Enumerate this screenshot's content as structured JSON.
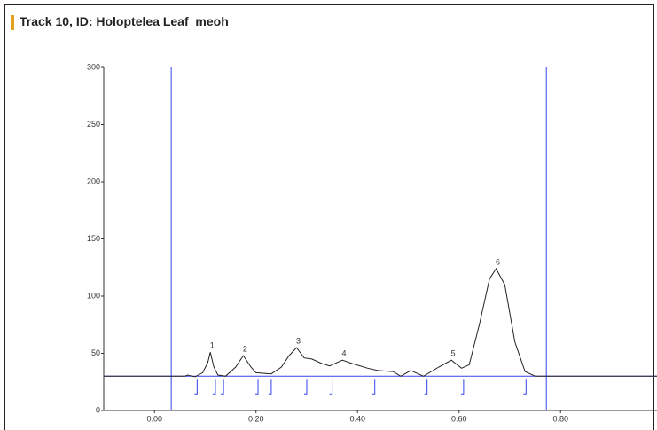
{
  "chart_data": {
    "type": "line",
    "title": "Track 10, ID: Holoptelea Leaf_meoh",
    "xlim": [
      -0.1,
      0.99
    ],
    "ylim": [
      0,
      300
    ],
    "yticks": [
      0,
      50,
      100,
      150,
      200,
      250,
      300
    ],
    "xticks": [
      {
        "value": 0,
        "label": "0.00"
      },
      {
        "value": 0.2,
        "label": "0.20"
      },
      {
        "value": 0.4,
        "label": "0.40"
      },
      {
        "value": 0.6,
        "label": "0.60"
      },
      {
        "value": 0.8,
        "label": "0.80"
      }
    ],
    "grid": false,
    "color": "#222222",
    "marker_color": "#3344ee",
    "start_line": 0.033,
    "front_line": 0.772,
    "baseline": 30,
    "peak_boundaries": [
      0.084,
      0.12,
      0.136,
      0.204,
      0.23,
      0.3,
      0.35,
      0.434,
      0.537,
      0.609,
      0.732
    ],
    "x": [
      -0.1,
      0.06,
      0.065,
      0.07,
      0.08,
      0.095,
      0.105,
      0.11,
      0.117,
      0.125,
      0.14,
      0.16,
      0.175,
      0.19,
      0.2,
      0.23,
      0.25,
      0.265,
      0.28,
      0.295,
      0.31,
      0.33,
      0.345,
      0.37,
      0.39,
      0.42,
      0.44,
      0.47,
      0.485,
      0.505,
      0.53,
      0.56,
      0.585,
      0.605,
      0.62,
      0.64,
      0.66,
      0.673,
      0.69,
      0.71,
      0.73,
      0.75,
      0.99
    ],
    "values": [
      30,
      30,
      31,
      30.5,
      29.5,
      33,
      42,
      51,
      38,
      31,
      30,
      38,
      48,
      38,
      33,
      32,
      38,
      48,
      55,
      46,
      45,
      41,
      39,
      44,
      41,
      37,
      35,
      34,
      30,
      35,
      30,
      38,
      44,
      37,
      40,
      75,
      115,
      124,
      110,
      60,
      34,
      30,
      30
    ],
    "peaks": [
      {
        "label": "1",
        "x": 0.11,
        "height": 51
      },
      {
        "label": "2",
        "x": 0.175,
        "height": 48
      },
      {
        "label": "3",
        "x": 0.28,
        "height": 55
      },
      {
        "label": "4",
        "x": 0.37,
        "height": 44
      },
      {
        "label": "5",
        "x": 0.585,
        "height": 44
      },
      {
        "label": "6",
        "x": 0.673,
        "height": 124
      }
    ]
  }
}
